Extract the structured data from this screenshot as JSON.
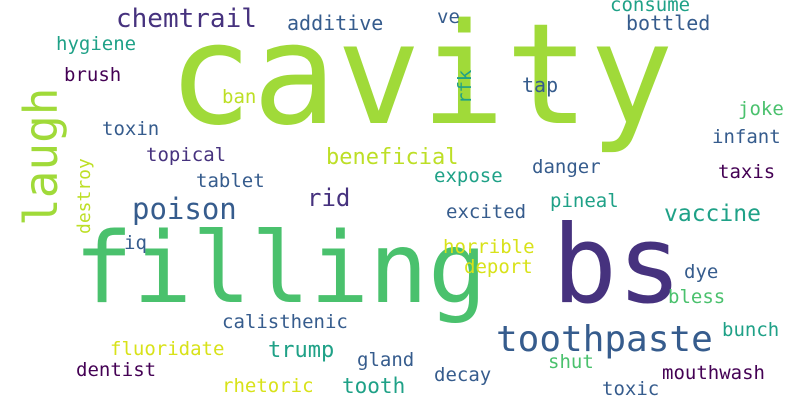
{
  "palette": {
    "lime": "#a0da39",
    "green": "#4ac16d",
    "teal": "#1fa187",
    "blue": "#365c8d",
    "indigo": "#46327e",
    "purple": "#440154",
    "yellow": "#d8e219",
    "bg": "#ffffff"
  },
  "words": [
    {
      "text": "cavity",
      "color": "#a0da39"
    },
    {
      "text": "filling",
      "color": "#4ac16d"
    },
    {
      "text": "bs",
      "color": "#46327e"
    },
    {
      "text": "laugh",
      "color": "#a0da39"
    },
    {
      "text": "toothpaste",
      "color": "#365c8d"
    },
    {
      "text": "poison",
      "color": "#365c8d"
    },
    {
      "text": "chemtrail",
      "color": "#46327e"
    },
    {
      "text": "vaccine",
      "color": "#1fa187"
    },
    {
      "text": "beneficial",
      "color": "#bddf26"
    },
    {
      "text": "trump",
      "color": "#1fa187"
    },
    {
      "text": "rid",
      "color": "#46327e"
    },
    {
      "text": "additive",
      "color": "#365c8d"
    },
    {
      "text": "consume",
      "color": "#1fa187"
    },
    {
      "text": "bottled",
      "color": "#365c8d"
    },
    {
      "text": "ve",
      "color": "#365c8d"
    },
    {
      "text": "hygiene",
      "color": "#1fa187"
    },
    {
      "text": "brush",
      "color": "#440154"
    },
    {
      "text": "rfk",
      "color": "#1fa187"
    },
    {
      "text": "tap",
      "color": "#365c8d"
    },
    {
      "text": "ban",
      "color": "#bddf26"
    },
    {
      "text": "joke",
      "color": "#4ac16d"
    },
    {
      "text": "toxin",
      "color": "#365c8d"
    },
    {
      "text": "infant",
      "color": "#365c8d"
    },
    {
      "text": "destroy",
      "color": "#bddf26"
    },
    {
      "text": "topical",
      "color": "#46327e"
    },
    {
      "text": "danger",
      "color": "#365c8d"
    },
    {
      "text": "taxis",
      "color": "#440154"
    },
    {
      "text": "expose",
      "color": "#1fa187"
    },
    {
      "text": "tablet",
      "color": "#365c8d"
    },
    {
      "text": "excited",
      "color": "#365c8d"
    },
    {
      "text": "pineal",
      "color": "#1fa187"
    },
    {
      "text": "iq",
      "color": "#365c8d"
    },
    {
      "text": "horrible",
      "color": "#d8e219"
    },
    {
      "text": "deport",
      "color": "#d8e219"
    },
    {
      "text": "dye",
      "color": "#365c8d"
    },
    {
      "text": "bless",
      "color": "#4ac16d"
    },
    {
      "text": "calisthenic",
      "color": "#365c8d"
    },
    {
      "text": "bunch",
      "color": "#1fa187"
    },
    {
      "text": "fluoridate",
      "color": "#d8e219"
    },
    {
      "text": "gland",
      "color": "#365c8d"
    },
    {
      "text": "shut",
      "color": "#4ac16d"
    },
    {
      "text": "dentist",
      "color": "#440154"
    },
    {
      "text": "decay",
      "color": "#365c8d"
    },
    {
      "text": "mouthwash",
      "color": "#440154"
    },
    {
      "text": "rhetoric",
      "color": "#d8e219"
    },
    {
      "text": "tooth",
      "color": "#1fa187"
    },
    {
      "text": "toxic",
      "color": "#365c8d"
    }
  ]
}
